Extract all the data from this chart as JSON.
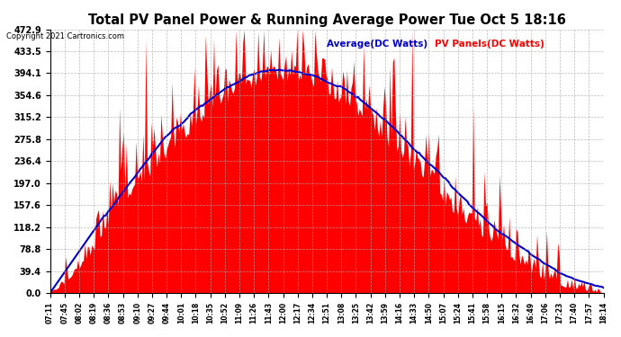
{
  "title": "Total PV Panel Power & Running Average Power Tue Oct 5 18:16",
  "copyright": "Copyright 2021 Cartronics.com",
  "legend_avg": "Average(DC Watts)",
  "legend_pv": "PV Panels(DC Watts)",
  "ymax": 472.9,
  "ymin": 0.0,
  "yticks": [
    0.0,
    39.4,
    78.8,
    118.2,
    157.6,
    197.0,
    236.4,
    275.8,
    315.2,
    354.6,
    394.1,
    433.5,
    472.9
  ],
  "bg_color": "#ffffff",
  "panel_bg": "#ffffff",
  "fill_color": "#ff0000",
  "avg_color": "#0000cc",
  "grid_color": "#aaaaaa",
  "title_color": "#000000",
  "copyright_color": "#000000",
  "time_labels": [
    "07:11",
    "07:45",
    "08:02",
    "08:19",
    "08:36",
    "08:53",
    "09:10",
    "09:27",
    "09:44",
    "10:01",
    "10:18",
    "10:35",
    "10:52",
    "11:09",
    "11:26",
    "11:43",
    "12:00",
    "12:17",
    "12:34",
    "12:51",
    "13:08",
    "13:25",
    "13:42",
    "13:59",
    "14:16",
    "14:33",
    "14:50",
    "15:07",
    "15:24",
    "15:41",
    "15:58",
    "16:15",
    "16:32",
    "16:49",
    "17:06",
    "17:23",
    "17:40",
    "17:57",
    "18:14"
  ]
}
